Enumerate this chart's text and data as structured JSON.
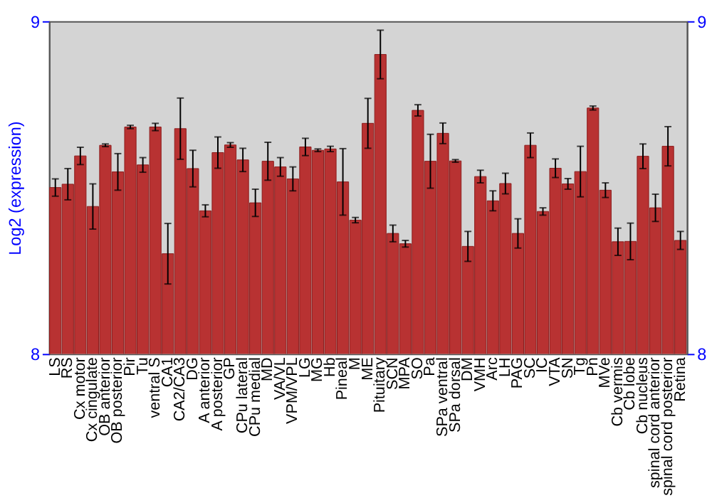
{
  "chart_data": {
    "type": "bar",
    "ylabel": "Log2 (expression)",
    "categories": [
      "LS",
      "RS",
      "Cx motor",
      "Cx cingulate",
      "OB anterior",
      "OB posterior",
      "Pir",
      "Tu",
      "ventral S",
      "CA1",
      "CA2/CA3",
      "DG",
      "A anterior",
      "A posterior",
      "GP",
      "CPu lateral",
      "CPu medial",
      "MD",
      "VA/VL",
      "VPM/VPL",
      "LG",
      "MG",
      "Hb",
      "Pineal",
      "M",
      "ME",
      "Pituitary",
      "SCN",
      "MPA",
      "SO",
      "Pa",
      "SPa ventral",
      "SPa dorsal",
      "DM",
      "VMH",
      "Arc",
      "LH",
      "PAG",
      "SC",
      "IC",
      "VTA",
      "SN",
      "Tg",
      "Pn",
      "MVe",
      "Cb vermis",
      "Cb lobe",
      "Cb nucleus",
      "spinal cord anterior",
      "spinal cord posterior",
      "Retina"
    ],
    "values": [
      8.5,
      8.51,
      8.595,
      8.443,
      8.627,
      8.547,
      8.682,
      8.568,
      8.682,
      8.301,
      8.677,
      8.557,
      8.43,
      8.605,
      8.628,
      8.583,
      8.454,
      8.579,
      8.562,
      8.526,
      8.622,
      8.612,
      8.616,
      8.517,
      8.402,
      8.693,
      8.9,
      8.362,
      8.331,
      8.732,
      8.579,
      8.663,
      8.58,
      8.323,
      8.533,
      8.46,
      8.512,
      8.362,
      8.627,
      8.428,
      8.558,
      8.511,
      8.548,
      8.739,
      8.492,
      8.337,
      8.338,
      8.594,
      8.439,
      8.624,
      8.341
    ],
    "errors": [
      0.026,
      0.047,
      0.026,
      0.068,
      0.004,
      0.055,
      0.005,
      0.022,
      0.011,
      0.091,
      0.092,
      0.055,
      0.018,
      0.047,
      0.007,
      0.035,
      0.041,
      0.057,
      0.028,
      0.036,
      0.026,
      0.004,
      0.008,
      0.1,
      0.008,
      0.075,
      0.073,
      0.025,
      0.01,
      0.017,
      0.081,
      0.031,
      0.004,
      0.045,
      0.019,
      0.03,
      0.031,
      0.044,
      0.037,
      0.011,
      0.028,
      0.016,
      0.076,
      0.006,
      0.022,
      0.041,
      0.055,
      0.037,
      0.041,
      0.059,
      0.027
    ],
    "color": "#b83232",
    "ylim": [
      8,
      9
    ],
    "yticks": [
      8,
      9
    ],
    "y2lim": [
      8,
      9
    ],
    "y2ticks": [
      8,
      9
    ],
    "grid": false
  }
}
